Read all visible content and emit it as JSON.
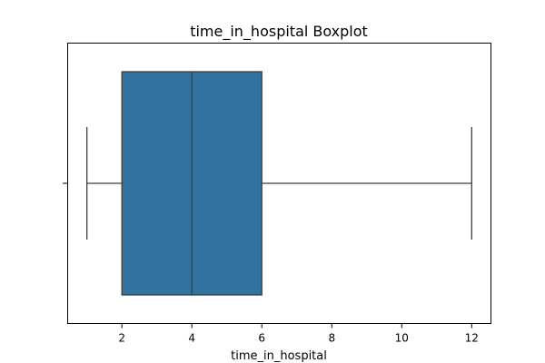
{
  "chart_data": {
    "type": "boxplot",
    "title": "time_in_hospital Boxplot",
    "xlabel": "time_in_hospital",
    "ylabel": "",
    "orientation": "horizontal",
    "xlim": [
      0.45,
      12.55
    ],
    "xticks": [
      2,
      4,
      6,
      8,
      10,
      12
    ],
    "grid": false,
    "box": {
      "min": 1,
      "q1": 2,
      "median": 4,
      "q3": 6,
      "max": 12
    },
    "colors": {
      "box_fill": "#3274a1",
      "line": "#3f3f3f",
      "axis": "#000000"
    }
  }
}
